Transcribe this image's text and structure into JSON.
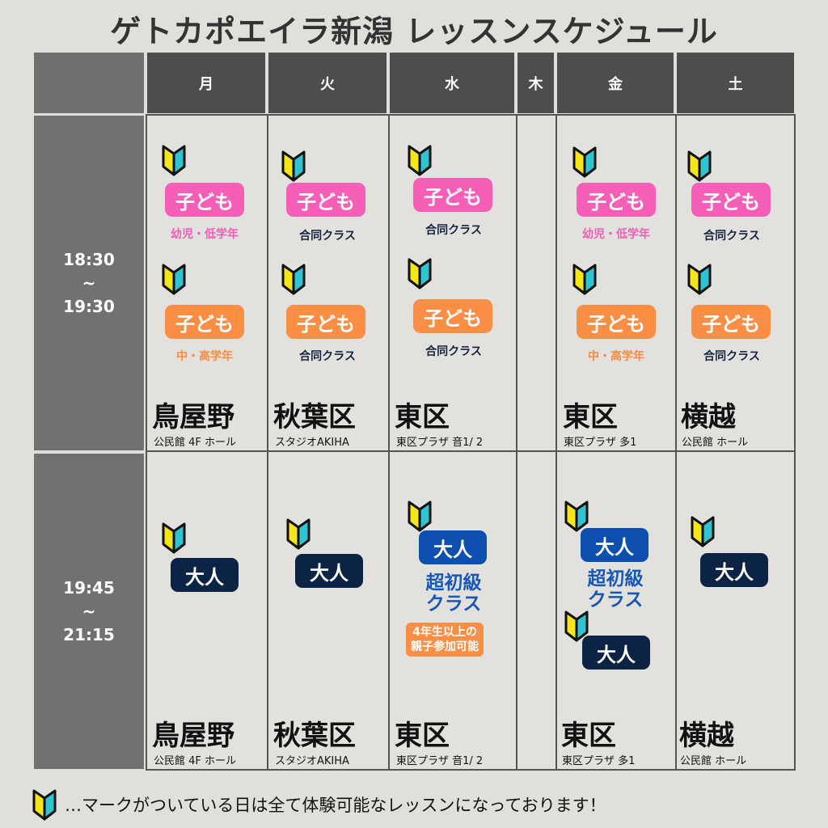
{
  "title": "ゲトカポエイラ新潟 レッスンスケジュール",
  "days": [
    "月",
    "火",
    "水",
    "木",
    "金",
    "土"
  ],
  "times": {
    "slot1": {
      "start": "18:30",
      "sep": "~",
      "end": "19:30"
    },
    "slot2": {
      "start": "19:45",
      "sep": "~",
      "end": "21:15"
    }
  },
  "labels": {
    "kids": "子ども",
    "adult": "大人",
    "advanced_line1": "超初級",
    "advanced_line2": "クラス",
    "young": "幼児・低学年",
    "older": "中・高学年",
    "joint": "合同クラス",
    "note_line1": "4年生以上の",
    "note_line2": "親子参加可能"
  },
  "locations": {
    "mon": {
      "name": "鳥屋野",
      "venue": "公民館 4F ホール"
    },
    "tue": {
      "name": "秋葉区",
      "venue": "スタジオAKIHA"
    },
    "wed": {
      "name": "東区",
      "venue": "東区プラザ 音1/ 2"
    },
    "fri": {
      "name": "東区",
      "venue": "東区プラザ 多1"
    },
    "sat": {
      "name": "横越",
      "venue": "公民館 ホール"
    }
  },
  "footer": "…マークがついている日は全て体験可能なレッスンになっております！",
  "colors": {
    "kids_young": "#f55fb8",
    "kids_older": "#fb8e45",
    "adult": "#0b2344",
    "advanced": "#0d4fae",
    "header": "#4d4d4d",
    "mark_yellow": "#f5e61c",
    "mark_cyan": "#2ec5d2"
  },
  "icons": {
    "beginner_mark": "beginner-mark-icon"
  }
}
